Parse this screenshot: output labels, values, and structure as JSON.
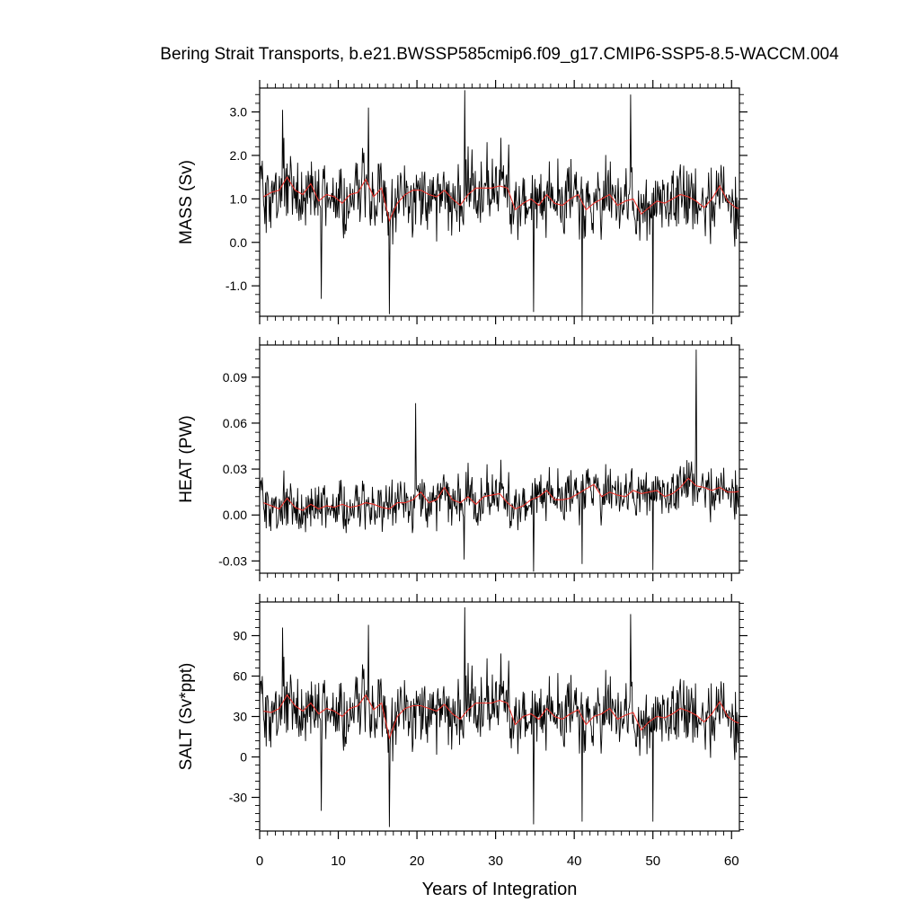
{
  "title": "Bering Strait Transports, b.e21.BWSSP585cmip6.f09_g17.CMIP6-SSP5-8.5-WACCM.004",
  "xlabel": "Years of Integration",
  "x_ticks": [
    "0",
    "10",
    "20",
    "30",
    "40",
    "50",
    "60"
  ],
  "colors": {
    "monthly": "#000000",
    "annual": "#e8312a",
    "frame": "#000000"
  },
  "chart_data": [
    {
      "type": "line",
      "ylabel": "MASS (Sv)",
      "xlim": [
        0,
        61
      ],
      "ylim": [
        -1.7,
        3.55
      ],
      "yticks": [
        -1.0,
        0.0,
        1.0,
        2.0,
        3.0
      ],
      "ytick_labels": [
        "-1.0",
        "0.0",
        "1.0",
        "2.0",
        "3.0"
      ],
      "grid": false,
      "annual_mean": [
        1.05,
        1.15,
        1.2,
        1.5,
        1.2,
        1.1,
        1.35,
        0.95,
        1.1,
        1.05,
        0.9,
        1.1,
        1.15,
        1.45,
        1.05,
        1.25,
        0.5,
        0.9,
        1.1,
        1.2,
        1.2,
        1.1,
        1.05,
        1.2,
        1.0,
        0.85,
        1.1,
        1.25,
        1.25,
        1.25,
        1.3,
        1.25,
        0.75,
        0.9,
        1.0,
        0.85,
        1.1,
        0.9,
        0.85,
        1.0,
        1.1,
        0.75,
        0.9,
        1.0,
        1.1,
        0.85,
        0.95,
        1.0,
        0.65,
        0.8,
        0.95,
        0.9,
        1.0,
        1.1,
        1.05,
        0.95,
        0.8,
        1.0,
        1.3,
        0.95,
        0.8,
        0.75
      ],
      "series": [
        {
          "name": "",
          "monthly_amplitude": 0.7,
          "spikes": [
            [
              2.9,
              3.05
            ],
            [
              13.8,
              3.1
            ],
            [
              16.5,
              -1.65
            ],
            [
              26.1,
              3.5
            ],
            [
              34.8,
              -1.6
            ],
            [
              41.0,
              -1.7
            ],
            [
              47.2,
              3.4
            ],
            [
              50.0,
              -1.65
            ],
            [
              7.8,
              -1.3
            ]
          ]
        }
      ]
    },
    {
      "type": "line",
      "ylabel": "HEAT (PW)",
      "xlim": [
        0,
        61
      ],
      "ylim": [
        -0.038,
        0.111
      ],
      "yticks": [
        -0.03,
        0.0,
        0.03,
        0.06,
        0.09
      ],
      "ytick_labels": [
        "-0.03",
        "0.00",
        "0.03",
        "0.06",
        "0.09"
      ],
      "grid": false,
      "annual_mean": [
        0.008,
        0.006,
        0.004,
        0.011,
        0.005,
        0.003,
        0.007,
        0.004,
        0.006,
        0.005,
        0.007,
        0.005,
        0.006,
        0.008,
        0.007,
        0.005,
        0.004,
        0.008,
        0.008,
        0.01,
        0.015,
        0.008,
        0.01,
        0.018,
        0.01,
        0.008,
        0.012,
        0.007,
        0.012,
        0.013,
        0.014,
        0.008,
        0.004,
        0.006,
        0.01,
        0.012,
        0.016,
        0.01,
        0.01,
        0.011,
        0.014,
        0.017,
        0.02,
        0.012,
        0.015,
        0.013,
        0.012,
        0.016,
        0.014,
        0.015,
        0.016,
        0.012,
        0.014,
        0.018,
        0.024,
        0.019,
        0.018,
        0.016,
        0.018,
        0.015,
        0.015,
        0.016
      ],
      "series": [
        {
          "name": "",
          "monthly_amplitude": 0.014,
          "spikes": [
            [
              55.5,
              0.108
            ],
            [
              19.8,
              0.073
            ],
            [
              34.8,
              -0.037
            ],
            [
              50.0,
              -0.036
            ],
            [
              41.0,
              -0.032
            ],
            [
              26.0,
              -0.029
            ]
          ]
        }
      ]
    },
    {
      "type": "line",
      "ylabel": "SALT (Sv*ppt)",
      "xlim": [
        0,
        61
      ],
      "ylim": [
        -55,
        115
      ],
      "yticks": [
        -30,
        0,
        30,
        60,
        90
      ],
      "ytick_labels": [
        "-30",
        "0",
        "30",
        "60",
        "90"
      ],
      "grid": false,
      "annual_mean": [
        34,
        33,
        36,
        46,
        38,
        34,
        40,
        32,
        36,
        34,
        30,
        36,
        38,
        46,
        35,
        40,
        14,
        30,
        36,
        38,
        38,
        36,
        34,
        39,
        32,
        28,
        35,
        40,
        40,
        40,
        42,
        40,
        24,
        30,
        32,
        28,
        36,
        30,
        28,
        32,
        35,
        24,
        30,
        32,
        36,
        28,
        31,
        33,
        20,
        26,
        30,
        29,
        32,
        36,
        34,
        31,
        26,
        32,
        41,
        30,
        26,
        24
      ],
      "series": [
        {
          "name": "",
          "monthly_amplitude": 22,
          "spikes": [
            [
              2.9,
              96
            ],
            [
              13.8,
              98
            ],
            [
              16.5,
              -52
            ],
            [
              26.1,
              111
            ],
            [
              34.8,
              -50
            ],
            [
              41.0,
              -48
            ],
            [
              47.2,
              106
            ],
            [
              50.0,
              -48
            ],
            [
              7.8,
              -40
            ]
          ]
        }
      ]
    }
  ]
}
